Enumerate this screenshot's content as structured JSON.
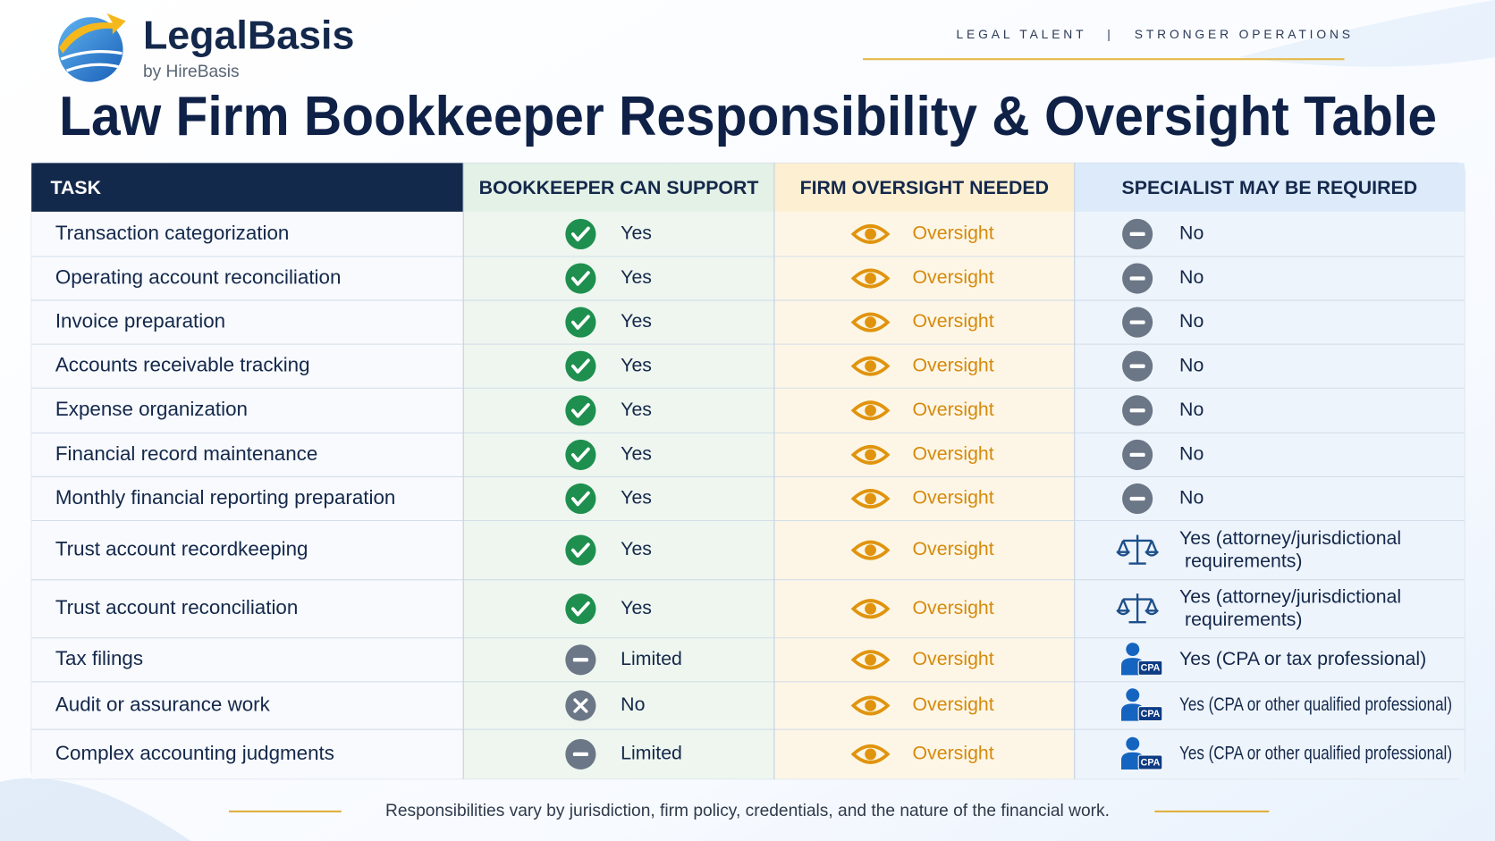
{
  "header": {
    "brand": "LegalBasis",
    "brand_sub": "by HireBasis",
    "tagline": "LEGAL TALENT   |   STRONGER OPERATIONS"
  },
  "title": "Law Firm Bookkeeper Responsibility & Oversight Table",
  "table": {
    "columns": [
      "TASK",
      "BOOKKEEPER CAN SUPPORT",
      "FIRM OVERSIGHT NEEDED",
      "SPECIALIST MAY BE REQUIRED"
    ],
    "specialist_badge": "CPA",
    "rows": [
      [
        "Transaction categorization",
        "Yes",
        "Oversight",
        "No"
      ],
      [
        "Operating account reconciliation",
        "Yes",
        "Oversight",
        "No"
      ],
      [
        "Invoice preparation",
        "Yes",
        "Oversight",
        "No"
      ],
      [
        "Accounts receivable tracking",
        "Yes",
        "Oversight",
        "No"
      ],
      [
        "Expense organization",
        "Yes",
        "Oversight",
        "No"
      ],
      [
        "Financial record maintenance",
        "Yes",
        "Oversight",
        "No"
      ],
      [
        "Monthly financial reporting preparation",
        "Yes",
        "Oversight",
        "No"
      ],
      [
        "Trust account recordkeeping",
        "Yes",
        "Oversight",
        "Yes (attorney/jurisdictional requirements)"
      ],
      [
        "Trust account reconciliation",
        "Yes",
        "Oversight",
        "Yes (attorney/jurisdictional requirements)"
      ],
      [
        "Tax filings",
        "Limited",
        "Oversight",
        "Yes (CPA or tax professional)"
      ],
      [
        "Audit or assurance work",
        "No",
        "Oversight",
        "Yes (CPA or other qualified professional)"
      ],
      [
        "Complex accounting judgments",
        "Limited",
        "Oversight",
        "Yes (CPA or other qualified professional)"
      ]
    ]
  },
  "footer": "Responsibilities vary by jurisdiction, firm policy, credentials, and the nature of the financial work."
}
